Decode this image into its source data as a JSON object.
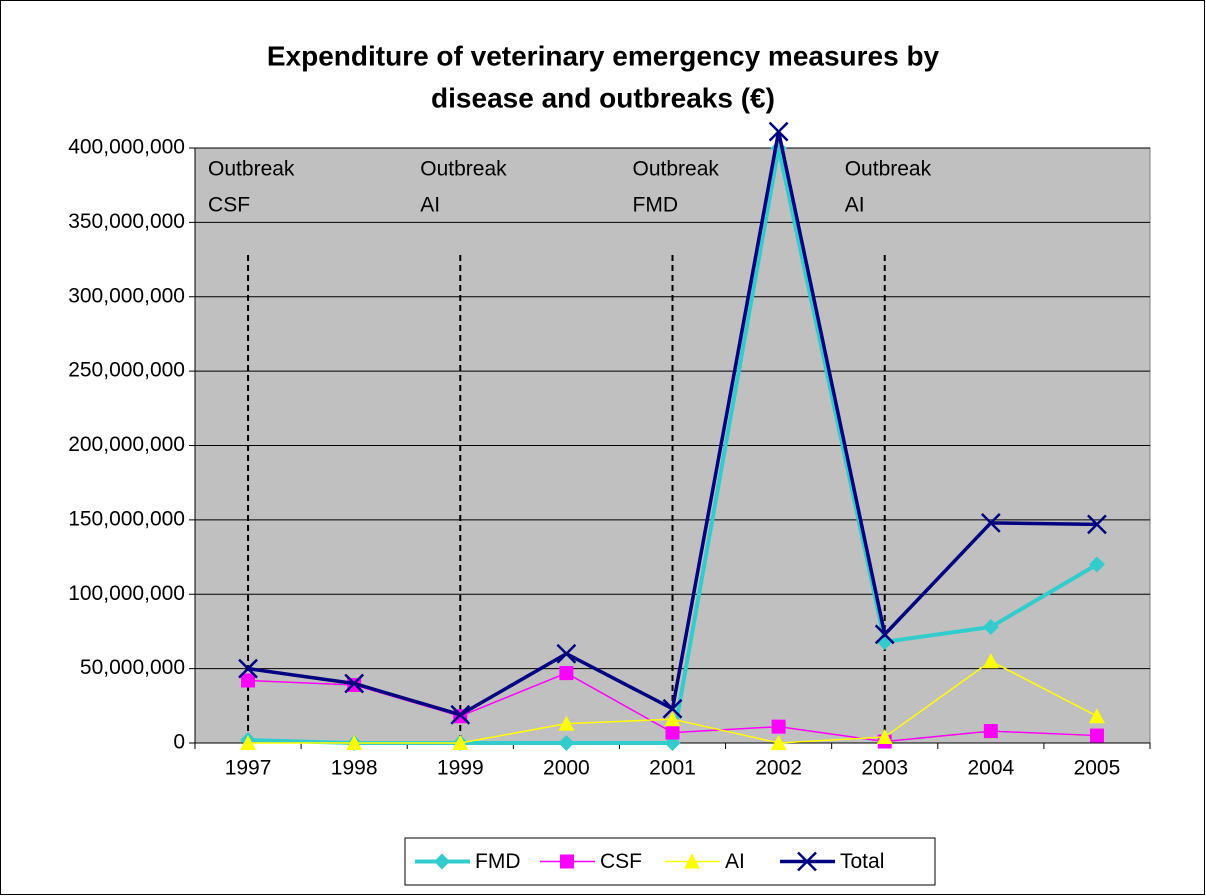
{
  "chart_data": {
    "type": "line",
    "title": [
      "Expenditure of veterinary emergency measures by",
      "disease and outbreaks (€)"
    ],
    "categories": [
      "1997",
      "1998",
      "1999",
      "2000",
      "2001",
      "2002",
      "2003",
      "2004",
      "2005"
    ],
    "series": [
      {
        "name": "FMD",
        "color": "#33cccc",
        "values": [
          2000000,
          0,
          0,
          0,
          0,
          400000000,
          68000000,
          78000000,
          120000000
        ]
      },
      {
        "name": "CSF",
        "color": "#ff00ff",
        "values": [
          42000000,
          39000000,
          18000000,
          47000000,
          7000000,
          11000000,
          1000000,
          8000000,
          5000000
        ]
      },
      {
        "name": "AI",
        "color": "#ffff00",
        "values": [
          0,
          0,
          0,
          13000000,
          16000000,
          0,
          4000000,
          55000000,
          18000000
        ]
      },
      {
        "name": "Total",
        "color": "#000080",
        "values": [
          50000000,
          40000000,
          19000000,
          60000000,
          23000000,
          411000000,
          73000000,
          148000000,
          147000000
        ]
      }
    ],
    "ylim": [
      0,
      400000000
    ],
    "yticks": [
      0,
      {
        "value": 50000000,
        "label": "50,000,000"
      },
      {
        "value": 100000000,
        "label": "100,000,000"
      },
      {
        "value": 150000000,
        "label": "150,000,000"
      },
      {
        "value": 200000000,
        "label": "200,000,000"
      },
      {
        "value": 250000000,
        "label": "250,000,000"
      },
      {
        "value": 300000000,
        "label": "300,000,000"
      },
      {
        "value": 350000000,
        "label": "350,000,000"
      },
      {
        "value": 400000000,
        "label": "400,000,000"
      }
    ],
    "grid": true,
    "legend": "bottom",
    "annotations": [
      {
        "text": [
          "Outbreak",
          "CSF"
        ],
        "x": "1997"
      },
      {
        "text": [
          "Outbreak",
          "AI"
        ],
        "x": "1999"
      },
      {
        "text": [
          "Outbreak",
          "FMD"
        ],
        "x": "2001"
      },
      {
        "text": [
          "Outbreak",
          "AI"
        ],
        "x": "2003"
      }
    ]
  }
}
